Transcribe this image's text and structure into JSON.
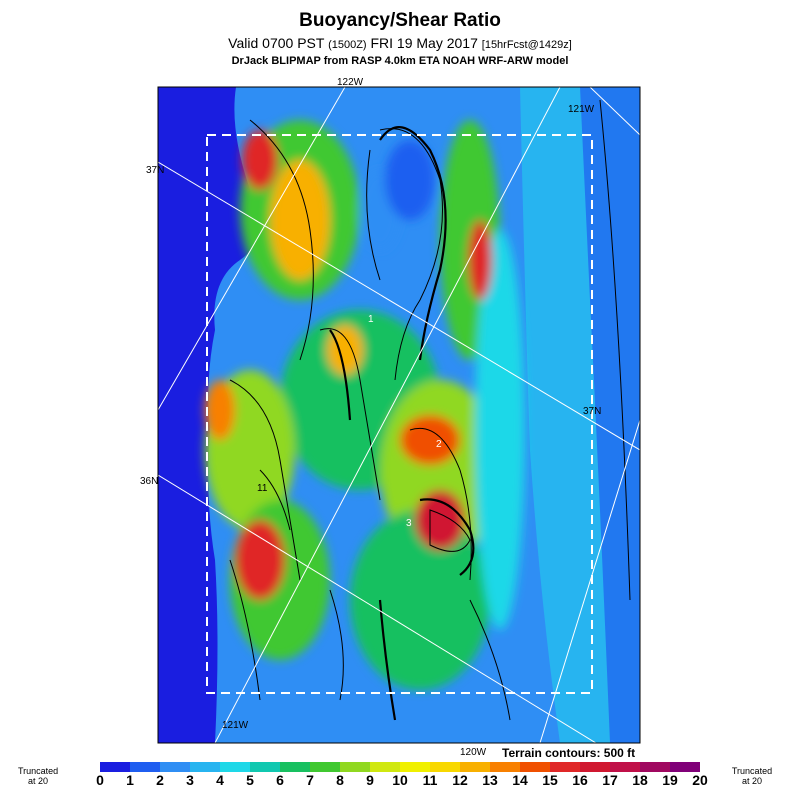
{
  "header": {
    "title": "Buoyancy/Shear Ratio",
    "valid_prefix": "Valid 0700 PST",
    "valid_utc": "(1500Z)",
    "valid_date": "FRI 19 May 2017",
    "forecast": "[15hrFcst@1429z]",
    "credit": "DrJack BLIPMAP from RASP 4.0km ETA NOAH WRF-ARW model"
  },
  "map": {
    "lon_labels": [
      "122W",
      "121W",
      "121W",
      "120W"
    ],
    "lat_labels": [
      "37N",
      "37N",
      "36N"
    ],
    "contour_labels": [
      "1",
      "2",
      "3",
      "11"
    ]
  },
  "footer": {
    "terrain_note": "Terrain contours: 500 ft",
    "truncated_left": [
      "Truncated",
      "at 20"
    ],
    "truncated_right": [
      "Truncated",
      "at 20"
    ]
  },
  "legend": {
    "ticks": [
      "0",
      "1",
      "2",
      "3",
      "4",
      "5",
      "6",
      "7",
      "8",
      "9",
      "10",
      "11",
      "12",
      "13",
      "14",
      "15",
      "16",
      "17",
      "18",
      "19",
      "20"
    ],
    "colors": [
      "#1a1ee0",
      "#1f5ef0",
      "#2f8ef4",
      "#27b4f0",
      "#1ed8e8",
      "#10c8b0",
      "#18c060",
      "#40c830",
      "#90d820",
      "#d0e810",
      "#f0f000",
      "#f8d800",
      "#f8b000",
      "#f88000",
      "#f05000",
      "#e02828",
      "#d01830",
      "#c01048",
      "#a00860",
      "#800078"
    ]
  }
}
